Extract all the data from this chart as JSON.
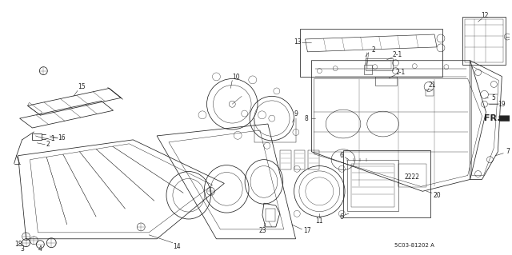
{
  "background_color": "#ffffff",
  "watermark": "5C03-81202 A",
  "fig_width": 6.4,
  "fig_height": 3.19,
  "dpi": 100,
  "text_color": "#222222",
  "line_color": "#222222",
  "line_width": 0.55,
  "fr_label": "FR.",
  "label_fontsize": 5.5,
  "watermark_fontsize": 5.0
}
